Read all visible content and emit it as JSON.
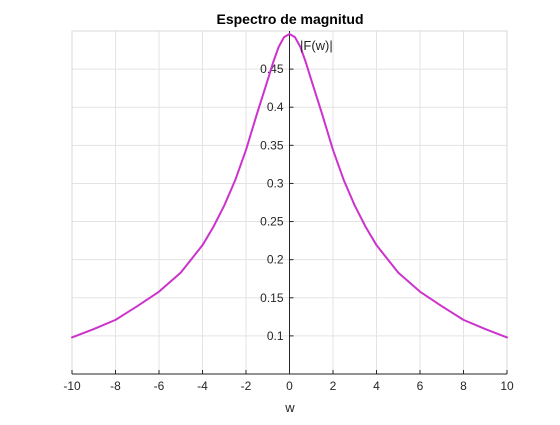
{
  "chart_data": {
    "type": "line",
    "title": "Espectro de magnitud",
    "xlabel": "w",
    "ylabel": "",
    "annotation": "|F(w)|",
    "xlim": [
      -10,
      10
    ],
    "ylim": [
      0.05,
      0.5
    ],
    "xticks": [
      -10,
      -8,
      -6,
      -4,
      -2,
      0,
      2,
      4,
      6,
      8,
      10
    ],
    "yticks": [
      0.1,
      0.15,
      0.2,
      0.25,
      0.3,
      0.35,
      0.4,
      0.45
    ],
    "grid": true,
    "axes_through_origin": true,
    "series": [
      {
        "color": "#cc33cc",
        "x": [
          -10,
          -9,
          -8,
          -7,
          -6,
          -5,
          -4,
          -3.5,
          -3,
          -2.5,
          -2,
          -1.5,
          -1,
          -0.75,
          -0.5,
          -0.25,
          0,
          0.25,
          0.5,
          0.75,
          1,
          1.5,
          2,
          2.5,
          3,
          3.5,
          4,
          5,
          6,
          7,
          8,
          9,
          10
        ],
        "y": [
          0.098,
          0.109,
          0.121,
          0.139,
          0.158,
          0.183,
          0.219,
          0.243,
          0.271,
          0.304,
          0.344,
          0.391,
          0.436,
          0.459,
          0.479,
          0.492,
          0.496,
          0.492,
          0.479,
          0.459,
          0.436,
          0.391,
          0.344,
          0.304,
          0.271,
          0.243,
          0.219,
          0.183,
          0.158,
          0.139,
          0.121,
          0.109,
          0.098
        ]
      }
    ]
  }
}
